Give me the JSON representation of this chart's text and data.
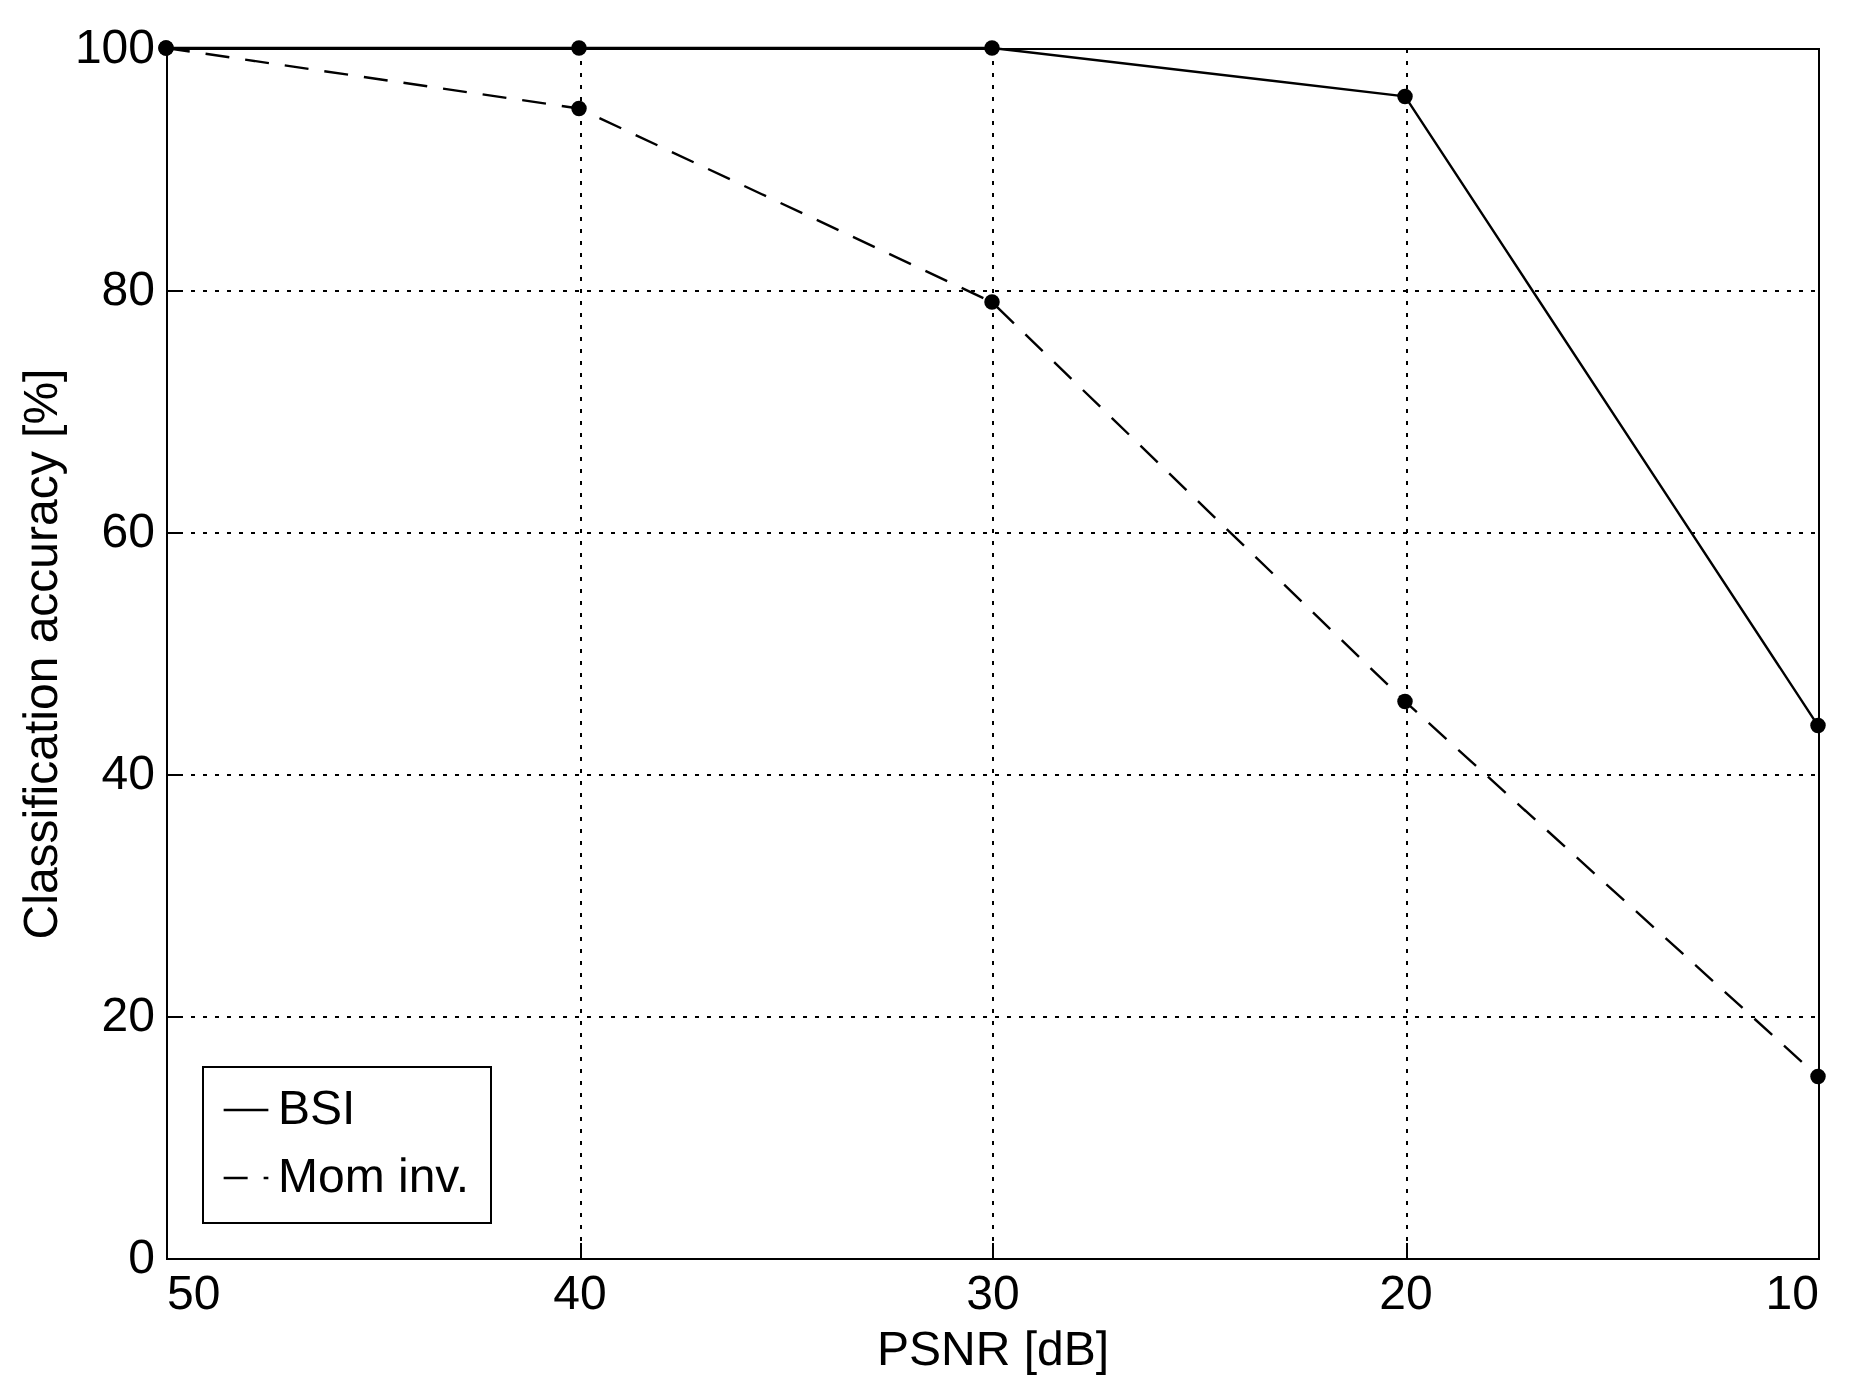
{
  "chart_data": {
    "type": "line",
    "xlabel": "PSNR [dB]",
    "ylabel": "Classification accuracy [%]",
    "x": [
      50,
      40,
      30,
      20,
      10
    ],
    "series": [
      {
        "name": "BSI",
        "color": "#000000",
        "line_style": "solid",
        "values": [
          100,
          100,
          100,
          96,
          44
        ]
      },
      {
        "name": "Mom inv.",
        "color": "#000000",
        "line_style": "dashed",
        "values": [
          100,
          95,
          79,
          46,
          15
        ]
      }
    ],
    "xlim": [
      50,
      10
    ],
    "xticks": [
      50,
      40,
      30,
      20,
      10
    ],
    "ylim": [
      0,
      100
    ],
    "yticks": [
      0,
      20,
      40,
      60,
      80,
      100
    ],
    "grid": true,
    "legend": "bottom left",
    "marker": "circle"
  }
}
